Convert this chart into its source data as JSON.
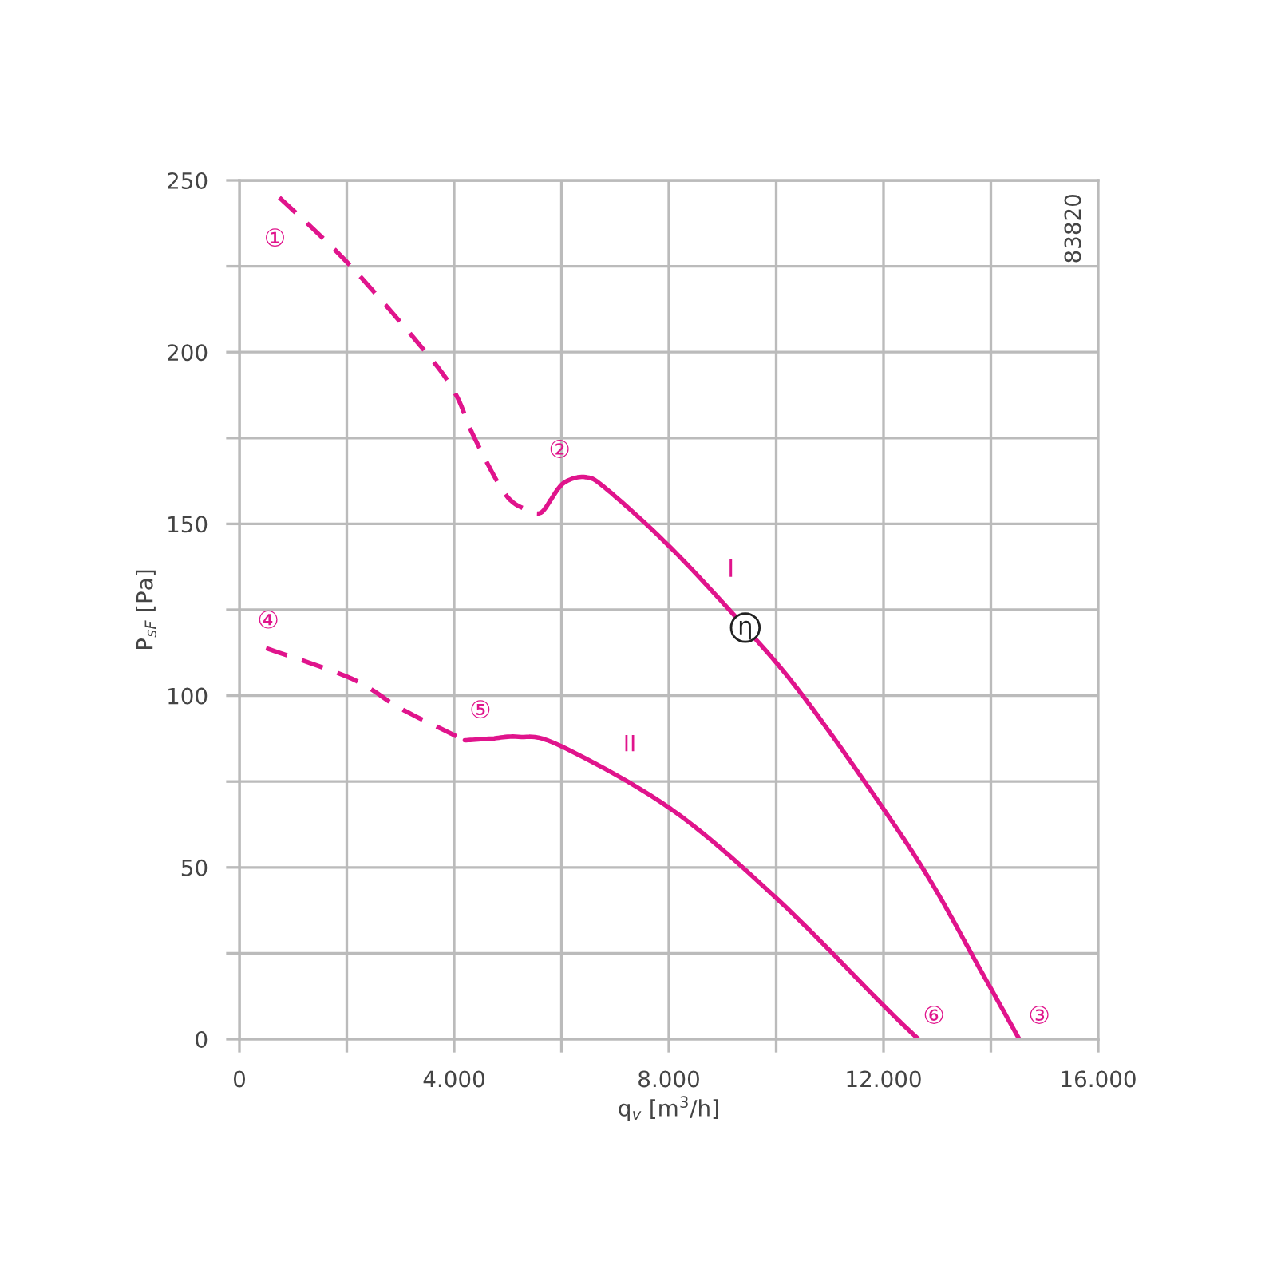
{
  "chart_data": {
    "type": "line",
    "xlabel": "q$_{v}$ [m$^{3}$/h]",
    "ylabel": "P$_{sF}$ [Pa]",
    "series": [
      {
        "color": "#e0148c",
        "line_style": "dashed",
        "x": [
          744,
          2015,
          3470,
          4020,
          4365,
          4960,
          5410,
          5620,
          5800
        ],
        "values": [
          245,
          226,
          200,
          188,
          175.5,
          158.5,
          153.8,
          153.3,
          157
        ]
      },
      {
        "color": "#e0148c",
        "line_style": "solid",
        "x": [
          5800,
          6050,
          6450,
          6850,
          8040,
          9425,
          10515,
          12000,
          12900,
          13790,
          14530
        ],
        "values": [
          157,
          162,
          163.6,
          160,
          143,
          119.8,
          99.6,
          67,
          45.4,
          20.6,
          0
        ]
      },
      {
        "color": "#e0148c",
        "line_style": "dashed",
        "x": [
          496,
          2083,
          2976,
          3870,
          4200
        ],
        "values": [
          113.8,
          105,
          96.5,
          89.5,
          87
        ]
      },
      {
        "color": "#e0148c",
        "line_style": "solid",
        "x": [
          4200,
          4700,
          5200,
          5950,
          8040,
          10020,
          12000,
          12650
        ],
        "values": [
          87,
          87.5,
          88,
          85.6,
          67,
          40.8,
          9.8,
          0
        ]
      }
    ],
    "xlim": [
      0,
      16000
    ],
    "ylim": [
      0,
      250
    ],
    "xticks": [
      0,
      {
        "value": 2000,
        "label": null
      },
      {
        "value": 4000,
        "label": "4.000"
      },
      {
        "value": 6000,
        "label": null
      },
      {
        "value": 8000,
        "label": "8.000"
      },
      {
        "value": 10000,
        "label": null
      },
      {
        "value": 12000,
        "label": "12.000"
      },
      {
        "value": 14000,
        "label": null
      },
      {
        "value": 16000,
        "label": "16.000"
      }
    ],
    "yticks": [
      0,
      {
        "value": 25,
        "label": null
      },
      50,
      {
        "value": 75,
        "label": null
      },
      100,
      {
        "value": 125,
        "label": null
      },
      150,
      {
        "value": 175,
        "label": null
      },
      200,
      {
        "value": 225,
        "label": null
      },
      250
    ],
    "grid": true,
    "marker": "none",
    "annotations": [
      "①",
      "②",
      "③",
      "④",
      "⑤",
      "⑥",
      "I",
      "II",
      "83820",
      {
        "text": "η",
        "x": 9425,
        "y": 119.8
      }
    ]
  }
}
